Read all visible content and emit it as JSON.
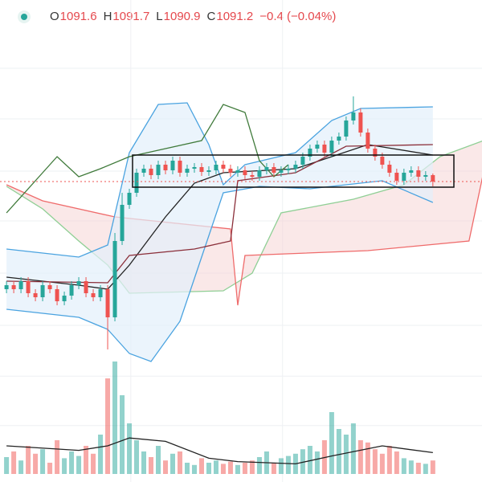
{
  "chart_data": {
    "type": "candlestick",
    "header": {
      "items": [
        {
          "label": "O",
          "value": "1091.6"
        },
        {
          "label": "H",
          "value": "1091.7"
        },
        {
          "label": "L",
          "value": "1090.9"
        },
        {
          "label": "C",
          "value": "1091.2"
        }
      ],
      "change": "−0.4 (−0.04%)"
    },
    "up_color": "#26a69a",
    "down_color": "#ef5350",
    "grid": true,
    "ylim": [
      1080,
      1102.5
    ],
    "yticks": [
      1098.25,
      1095.1,
      1091.85,
      1088.75,
      1085.5,
      1082.25
    ],
    "xlim": [
      -0.9,
      65.8
    ],
    "xticks": [
      17.2,
      38.2
    ],
    "vlim": [
      0,
      100
    ],
    "vticks": [
      43,
      87
    ],
    "open": [
      1084.5,
      1084.75,
      1084.5,
      1085,
      1084.25,
      1084,
      1084.75,
      1084.5,
      1083.75,
      1084.1,
      1084.75,
      1085,
      1084.25,
      1084,
      1084.5,
      1082.75,
      1087.5,
      1089.75,
      1090.5,
      1091.75,
      1092,
      1091.6,
      1092.25,
      1091.9,
      1092.5,
      1091.75,
      1092,
      1092.1,
      1091.8,
      1091.9,
      1092.25,
      1092,
      1091.75,
      1091.9,
      1091.6,
      1091.5,
      1091.9,
      1092.1,
      1091.75,
      1091.9,
      1092,
      1092.25,
      1092.75,
      1093.25,
      1093.5,
      1093,
      1093.75,
      1094,
      1095,
      1095.5,
      1094.25,
      1093.25,
      1092.75,
      1092.25,
      1091.75,
      1091.25,
      1091.75,
      1091.9,
      1091.5,
      1091.6
    ],
    "high": [
      1085,
      1085,
      1085.25,
      1085.25,
      1084.5,
      1085,
      1085,
      1084.75,
      1084.35,
      1085,
      1085.25,
      1085.25,
      1084.5,
      1084.75,
      1084.75,
      1088,
      1090.5,
      1090.75,
      1092,
      1092.25,
      1092.25,
      1092.5,
      1092.5,
      1092.75,
      1092.75,
      1092.25,
      1092.35,
      1092.35,
      1092.15,
      1092.5,
      1092.5,
      1092.25,
      1092.15,
      1092.15,
      1091.85,
      1092.15,
      1092.35,
      1092.35,
      1092.15,
      1092.25,
      1092.5,
      1093,
      1093.5,
      1093.75,
      1093.75,
      1094,
      1094.25,
      1095.25,
      1096.5,
      1095.75,
      1094.5,
      1093.5,
      1093,
      1092.5,
      1092,
      1092,
      1092.15,
      1092.15,
      1091.85,
      1091.7
    ],
    "low": [
      1084.25,
      1084.25,
      1084.25,
      1084,
      1083.75,
      1083.75,
      1084.25,
      1083.5,
      1083.5,
      1083.85,
      1084.5,
      1084,
      1083.75,
      1083.75,
      1080.75,
      1082.5,
      1087.25,
      1089.5,
      1090.25,
      1091.5,
      1091.35,
      1091.35,
      1091.65,
      1091.65,
      1091.5,
      1091.5,
      1091.75,
      1091.55,
      1091.55,
      1091.65,
      1091.75,
      1091.5,
      1091.5,
      1091.35,
      1091.25,
      1091.25,
      1091.65,
      1091.5,
      1091.5,
      1091.65,
      1091.75,
      1092,
      1092.5,
      1093,
      1092.75,
      1092.75,
      1093.5,
      1093.75,
      1094.75,
      1094,
      1093,
      1092.5,
      1092,
      1091.5,
      1091,
      1091,
      1091.5,
      1091.25,
      1091.25,
      1090.9
    ],
    "close": [
      1084.75,
      1084.5,
      1085,
      1084.25,
      1084,
      1084.75,
      1084.5,
      1083.75,
      1084.1,
      1084.75,
      1085,
      1084.25,
      1084,
      1084.5,
      1082.75,
      1087.5,
      1089.75,
      1090.5,
      1091.75,
      1092,
      1091.6,
      1092.25,
      1091.9,
      1092.5,
      1091.75,
      1092,
      1092.1,
      1091.8,
      1091.9,
      1092.25,
      1092,
      1091.75,
      1091.9,
      1091.6,
      1091.5,
      1091.9,
      1092.1,
      1091.75,
      1091.9,
      1092,
      1092.25,
      1092.75,
      1093.25,
      1093.5,
      1093,
      1093.75,
      1094,
      1095,
      1095.5,
      1094.25,
      1093.25,
      1092.75,
      1092.25,
      1091.75,
      1091.25,
      1091.75,
      1091.9,
      1091.5,
      1091.6,
      1091.2
    ],
    "volume": [
      15,
      20,
      12,
      25,
      18,
      22,
      10,
      30,
      14,
      20,
      16,
      25,
      18,
      35,
      85,
      100,
      70,
      45,
      30,
      20,
      15,
      25,
      12,
      18,
      20,
      10,
      8,
      14,
      10,
      12,
      9,
      11,
      8,
      10,
      12,
      15,
      20,
      10,
      14,
      16,
      18,
      22,
      25,
      20,
      30,
      55,
      40,
      35,
      45,
      30,
      28,
      22,
      18,
      25,
      20,
      14,
      12,
      10,
      9,
      12
    ],
    "cloud": {
      "fill": "#f6d5d5",
      "span_a": {
        "color": "#8fcf95",
        "x": [
          0,
          5,
          10,
          14,
          17,
          30,
          34,
          38,
          48,
          55,
          60,
          66
        ],
        "y": [
          1090.9,
          1089.5,
          1087.5,
          1086,
          1084.25,
          1084.4,
          1085.5,
          1089.25,
          1090.1,
          1091,
          1092.75,
          1093.75
        ]
      },
      "span_b": {
        "color": "#ef6b6b",
        "x": [
          0,
          5,
          15,
          31,
          32,
          33,
          50,
          64,
          66
        ],
        "y": [
          1091,
          1090,
          1089,
          1088.25,
          1083.5,
          1086.6,
          1086.9,
          1087.5,
          1091.75
        ]
      }
    },
    "bands": {
      "fill": "#e3f0fb",
      "upper": {
        "color": "#4aa3e0",
        "x": [
          0,
          10,
          14,
          17,
          21,
          25,
          28,
          30,
          33,
          40,
          45,
          49,
          59
        ],
        "y": [
          1087,
          1086.5,
          1087.25,
          1093,
          1096,
          1096.1,
          1093.5,
          1091,
          1092.25,
          1093,
          1095,
          1095.75,
          1095.85
        ]
      },
      "lower": {
        "color": "#4aa3e0",
        "x": [
          0,
          10,
          14,
          17,
          20,
          24,
          27,
          30,
          35,
          42,
          47,
          52,
          59
        ],
        "y": [
          1083.25,
          1082.75,
          1082,
          1080.5,
          1080,
          1082.5,
          1086.5,
          1090.5,
          1090.9,
          1090.75,
          1091,
          1091.25,
          1089.9
        ]
      }
    },
    "lines": [
      {
        "color": "#222222",
        "x": [
          0,
          10,
          14,
          17,
          22,
          26,
          30,
          40,
          45,
          50,
          59
        ],
        "y": [
          1085.25,
          1084.75,
          1084.5,
          1086,
          1089,
          1091.1,
          1091.75,
          1092,
          1092.75,
          1093.5,
          1092.85
        ]
      },
      {
        "color": "#8b2f3a",
        "x": [
          0,
          14,
          17,
          26,
          31,
          32,
          40,
          47,
          59
        ],
        "y": [
          1085,
          1084.9,
          1086.6,
          1087,
          1087.5,
          1091.25,
          1091.75,
          1093.4,
          1093.5
        ]
      },
      {
        "color": "#3f7a3a",
        "x": [
          0,
          5,
          7,
          10,
          13,
          17,
          22,
          27,
          30,
          33,
          35,
          37,
          39
        ],
        "y": [
          1089.25,
          1091.75,
          1092.75,
          1091.5,
          1092,
          1092.75,
          1093.25,
          1093.75,
          1096,
          1095.5,
          1092.5,
          1091.5,
          1092.25
        ]
      }
    ],
    "volume_ma": {
      "color": "#222222",
      "x": [
        0,
        10,
        14,
        17,
        22,
        28,
        32,
        40,
        45,
        52,
        59
      ],
      "y": [
        25,
        21,
        25,
        32,
        29,
        14,
        11,
        9,
        16,
        25,
        19
      ]
    }
  }
}
